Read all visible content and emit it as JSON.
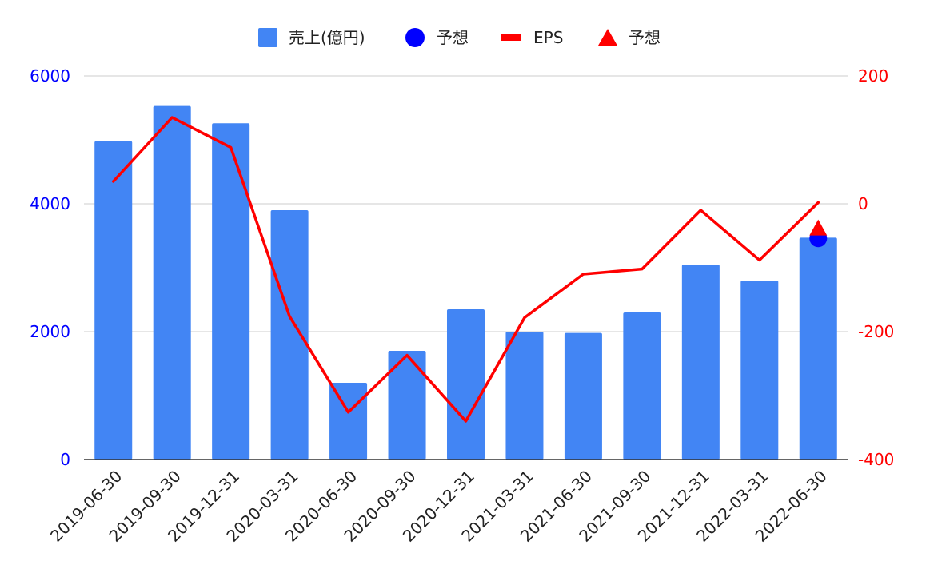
{
  "chart_data": {
    "type": "bar",
    "categories": [
      "2019-06-30",
      "2019-09-30",
      "2019-12-31",
      "2020-03-31",
      "2020-06-30",
      "2020-09-30",
      "2020-12-31",
      "2021-03-31",
      "2021-06-30",
      "2021-09-30",
      "2021-12-31",
      "2022-03-31",
      "2022-06-30"
    ],
    "series": [
      {
        "name": "売上(億円)",
        "type": "bar",
        "axis": "left",
        "color": "#4285f4",
        "values": [
          4980,
          5530,
          5260,
          3900,
          1200,
          1700,
          2350,
          2000,
          1980,
          2300,
          3050,
          2800,
          3470
        ]
      },
      {
        "name": "予想",
        "type": "point",
        "marker": "circle",
        "axis": "left",
        "color": "#0000ff",
        "points": [
          {
            "x": "2022-06-30",
            "y": 3460
          }
        ]
      },
      {
        "name": "EPS",
        "type": "line",
        "axis": "right",
        "color": "#ff0000",
        "values": [
          35,
          135,
          88,
          -176,
          -326,
          -237,
          -340,
          -178,
          -110,
          -102,
          -10,
          -88,
          2
        ]
      },
      {
        "name": "予想",
        "type": "point",
        "marker": "triangle",
        "axis": "right",
        "color": "#ff0000",
        "points": [
          {
            "x": "2022-06-30",
            "y": -37
          }
        ]
      }
    ],
    "y_left": {
      "range": [
        0,
        6000
      ],
      "ticks": [
        "0",
        "2000",
        "4000",
        "6000"
      ],
      "tick_color": "#0000ff"
    },
    "y_right": {
      "range": [
        -400,
        200
      ],
      "ticks": [
        "-400",
        "-200",
        "0",
        "200"
      ],
      "tick_color": "#ff0000"
    },
    "grid": true,
    "legend_position": "top",
    "x_tick_rotation": "-45deg",
    "title": "",
    "xlabel": "",
    "ylabel": ""
  }
}
